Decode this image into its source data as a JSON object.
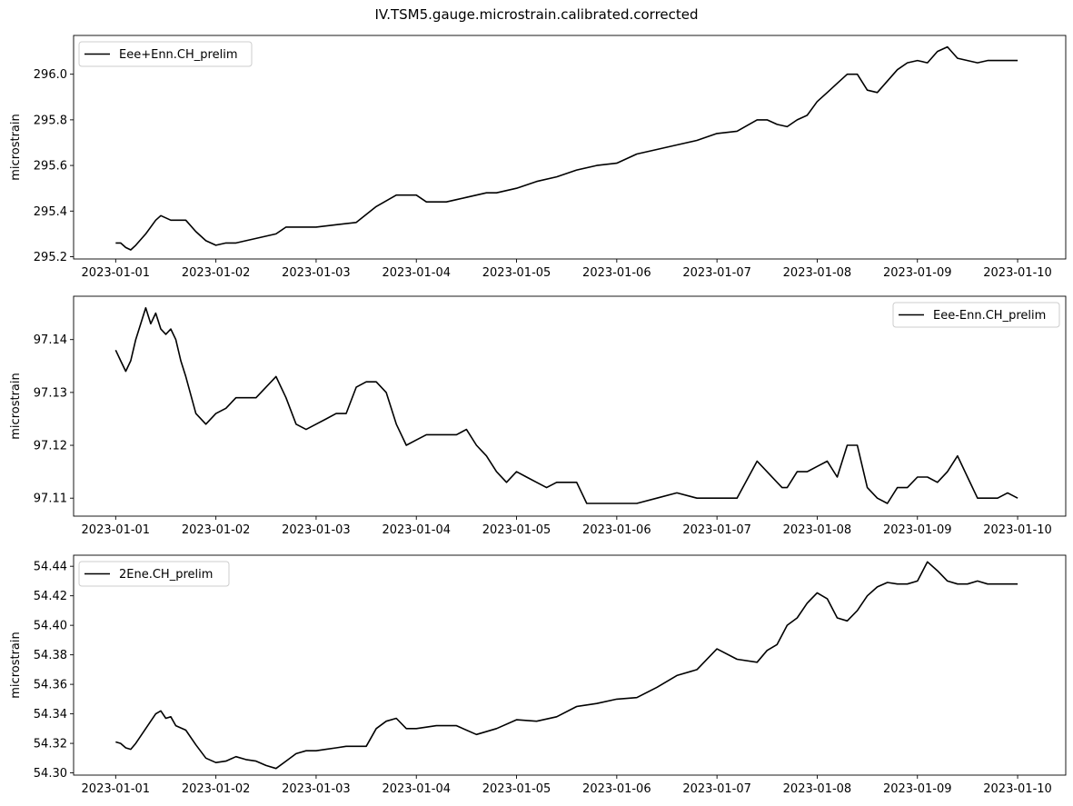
{
  "figure": {
    "title": "IV.TSM5.gauge.microstrain.calibrated.corrected"
  },
  "colors": {
    "line": "#000000",
    "axes": "#000000",
    "background": "#ffffff"
  },
  "chart_data": [
    {
      "type": "line",
      "title": "",
      "xlabel": "",
      "ylabel": "microstrain",
      "x_ticks": [
        "2023-01-01",
        "2023-01-02",
        "2023-01-03",
        "2023-01-04",
        "2023-01-05",
        "2023-01-06",
        "2023-01-07",
        "2023-01-08",
        "2023-01-09",
        "2023-01-10"
      ],
      "y_ticks": [
        295.2,
        295.4,
        295.6,
        295.8,
        296.0
      ],
      "y_tick_labels": [
        "295.2",
        "295.4",
        "295.6",
        "295.8",
        "296.0"
      ],
      "xlim": [
        -0.42,
        9.48
      ],
      "ylim": [
        295.19,
        296.17
      ],
      "grid": false,
      "legend": "upper left",
      "series": [
        {
          "name": "Eee+Enn.CH_prelim",
          "x": [
            0.0,
            0.05,
            0.1,
            0.15,
            0.2,
            0.3,
            0.4,
            0.45,
            0.5,
            0.55,
            0.6,
            0.7,
            0.8,
            0.9,
            1.0,
            1.1,
            1.2,
            1.3,
            1.4,
            1.5,
            1.6,
            1.7,
            1.8,
            1.9,
            2.0,
            2.2,
            2.4,
            2.6,
            2.8,
            3.0,
            3.1,
            3.2,
            3.3,
            3.4,
            3.5,
            3.6,
            3.7,
            3.8,
            3.9,
            4.0,
            4.2,
            4.4,
            4.6,
            4.8,
            5.0,
            5.2,
            5.4,
            5.6,
            5.8,
            6.0,
            6.2,
            6.4,
            6.5,
            6.6,
            6.7,
            6.8,
            6.9,
            7.0,
            7.1,
            7.2,
            7.3,
            7.4,
            7.5,
            7.6,
            7.7,
            7.8,
            7.9,
            8.0,
            8.1,
            8.2,
            8.3,
            8.4,
            8.5,
            8.6,
            8.7,
            8.8,
            8.9,
            9.0
          ],
          "y": [
            295.26,
            295.26,
            295.24,
            295.23,
            295.25,
            295.3,
            295.36,
            295.38,
            295.37,
            295.36,
            295.36,
            295.36,
            295.31,
            295.27,
            295.25,
            295.26,
            295.26,
            295.27,
            295.28,
            295.29,
            295.3,
            295.33,
            295.33,
            295.33,
            295.33,
            295.34,
            295.35,
            295.42,
            295.47,
            295.47,
            295.44,
            295.44,
            295.44,
            295.45,
            295.46,
            295.47,
            295.48,
            295.48,
            295.49,
            295.5,
            295.53,
            295.55,
            295.58,
            295.6,
            295.61,
            295.65,
            295.67,
            295.69,
            295.71,
            295.74,
            295.75,
            295.8,
            295.8,
            295.78,
            295.77,
            295.8,
            295.82,
            295.88,
            295.92,
            295.96,
            296.0,
            296.0,
            295.93,
            295.92,
            295.97,
            296.02,
            296.05,
            296.06,
            296.05,
            296.1,
            296.12,
            296.07,
            296.06,
            296.05,
            296.06,
            296.06,
            296.06,
            296.06
          ]
        }
      ]
    },
    {
      "type": "line",
      "title": "",
      "xlabel": "",
      "ylabel": "microstrain",
      "x_ticks": [
        "2023-01-01",
        "2023-01-02",
        "2023-01-03",
        "2023-01-04",
        "2023-01-05",
        "2023-01-06",
        "2023-01-07",
        "2023-01-08",
        "2023-01-09",
        "2023-01-10"
      ],
      "y_ticks": [
        97.11,
        97.12,
        97.13,
        97.14
      ],
      "y_tick_labels": [
        "97.11",
        "97.12",
        "97.13",
        "97.14"
      ],
      "xlim": [
        -0.42,
        9.48
      ],
      "ylim": [
        97.1066,
        97.1482
      ],
      "grid": false,
      "legend": "upper right",
      "series": [
        {
          "name": "Eee-Enn.CH_prelim",
          "x": [
            0.0,
            0.05,
            0.1,
            0.15,
            0.2,
            0.25,
            0.3,
            0.35,
            0.4,
            0.45,
            0.5,
            0.55,
            0.6,
            0.65,
            0.7,
            0.8,
            0.9,
            1.0,
            1.1,
            1.2,
            1.3,
            1.4,
            1.5,
            1.6,
            1.7,
            1.8,
            1.9,
            2.0,
            2.1,
            2.2,
            2.3,
            2.4,
            2.5,
            2.6,
            2.7,
            2.8,
            2.9,
            3.0,
            3.1,
            3.2,
            3.3,
            3.4,
            3.5,
            3.6,
            3.7,
            3.8,
            3.9,
            4.0,
            4.1,
            4.2,
            4.3,
            4.4,
            4.5,
            4.6,
            4.7,
            4.8,
            4.9,
            5.0,
            5.2,
            5.4,
            5.6,
            5.8,
            6.0,
            6.2,
            6.4,
            6.6,
            6.65,
            6.7,
            6.8,
            6.9,
            7.0,
            7.1,
            7.2,
            7.3,
            7.4,
            7.5,
            7.6,
            7.7,
            7.8,
            7.9,
            8.0,
            8.1,
            8.2,
            8.3,
            8.4,
            8.5,
            8.6,
            8.7,
            8.8,
            8.9,
            9.0
          ],
          "y": [
            97.138,
            97.136,
            97.134,
            97.136,
            97.14,
            97.143,
            97.146,
            97.143,
            97.145,
            97.142,
            97.141,
            97.142,
            97.14,
            97.136,
            97.133,
            97.126,
            97.124,
            97.126,
            97.127,
            97.129,
            97.129,
            97.129,
            97.131,
            97.133,
            97.129,
            97.124,
            97.123,
            97.124,
            97.125,
            97.126,
            97.126,
            97.131,
            97.132,
            97.132,
            97.13,
            97.124,
            97.12,
            97.121,
            97.122,
            97.122,
            97.122,
            97.122,
            97.123,
            97.12,
            97.118,
            97.115,
            97.113,
            97.115,
            97.114,
            97.113,
            97.112,
            97.113,
            97.113,
            97.113,
            97.109,
            97.109,
            97.109,
            97.109,
            97.109,
            97.11,
            97.111,
            97.11,
            97.11,
            97.11,
            97.117,
            97.113,
            97.112,
            97.112,
            97.115,
            97.115,
            97.116,
            97.117,
            97.114,
            97.12,
            97.12,
            97.112,
            97.11,
            97.109,
            97.112,
            97.112,
            97.114,
            97.114,
            97.113,
            97.115,
            97.118,
            97.114,
            97.11,
            97.11,
            97.11,
            97.111,
            97.11
          ]
        }
      ]
    },
    {
      "type": "line",
      "title": "",
      "xlabel": "",
      "ylabel": "microstrain",
      "x_ticks": [
        "2023-01-01",
        "2023-01-02",
        "2023-01-03",
        "2023-01-04",
        "2023-01-05",
        "2023-01-06",
        "2023-01-07",
        "2023-01-08",
        "2023-01-09",
        "2023-01-10"
      ],
      "y_ticks": [
        54.3,
        54.32,
        54.34,
        54.36,
        54.38,
        54.4,
        54.42,
        54.44
      ],
      "y_tick_labels": [
        "54.30",
        "54.32",
        "54.34",
        "54.36",
        "54.38",
        "54.40",
        "54.42",
        "54.44"
      ],
      "xlim": [
        -0.42,
        9.48
      ],
      "ylim": [
        54.2985,
        54.4475
      ],
      "grid": false,
      "legend": "upper left",
      "series": [
        {
          "name": "2Ene.CH_prelim",
          "x": [
            0.0,
            0.05,
            0.1,
            0.15,
            0.2,
            0.3,
            0.4,
            0.45,
            0.5,
            0.55,
            0.6,
            0.7,
            0.8,
            0.9,
            1.0,
            1.1,
            1.2,
            1.3,
            1.4,
            1.5,
            1.6,
            1.7,
            1.8,
            1.9,
            2.0,
            2.1,
            2.2,
            2.3,
            2.4,
            2.5,
            2.6,
            2.7,
            2.8,
            2.9,
            3.0,
            3.1,
            3.2,
            3.4,
            3.6,
            3.8,
            4.0,
            4.2,
            4.4,
            4.6,
            4.8,
            5.0,
            5.2,
            5.4,
            5.6,
            5.8,
            6.0,
            6.2,
            6.4,
            6.5,
            6.6,
            6.7,
            6.8,
            6.9,
            7.0,
            7.1,
            7.2,
            7.3,
            7.4,
            7.5,
            7.6,
            7.7,
            7.8,
            7.9,
            8.0,
            8.1,
            8.2,
            8.3,
            8.4,
            8.5,
            8.6,
            8.7,
            8.8,
            8.9,
            9.0
          ],
          "y": [
            54.321,
            54.32,
            54.317,
            54.316,
            54.32,
            54.33,
            54.34,
            54.342,
            54.337,
            54.338,
            54.332,
            54.329,
            54.319,
            54.31,
            54.307,
            54.308,
            54.311,
            54.309,
            54.308,
            54.305,
            54.303,
            54.308,
            54.313,
            54.315,
            54.315,
            54.316,
            54.317,
            54.318,
            54.318,
            54.318,
            54.33,
            54.335,
            54.337,
            54.33,
            54.33,
            54.331,
            54.332,
            54.332,
            54.326,
            54.33,
            54.336,
            54.335,
            54.338,
            54.345,
            54.347,
            54.35,
            54.351,
            54.358,
            54.366,
            54.37,
            54.384,
            54.377,
            54.375,
            54.383,
            54.387,
            54.4,
            54.405,
            54.415,
            54.422,
            54.418,
            54.405,
            54.403,
            54.41,
            54.42,
            54.426,
            54.429,
            54.428,
            54.428,
            54.43,
            54.443,
            54.437,
            54.43,
            54.428,
            54.428,
            54.43,
            54.428,
            54.428,
            54.428,
            54.428
          ]
        }
      ]
    }
  ]
}
